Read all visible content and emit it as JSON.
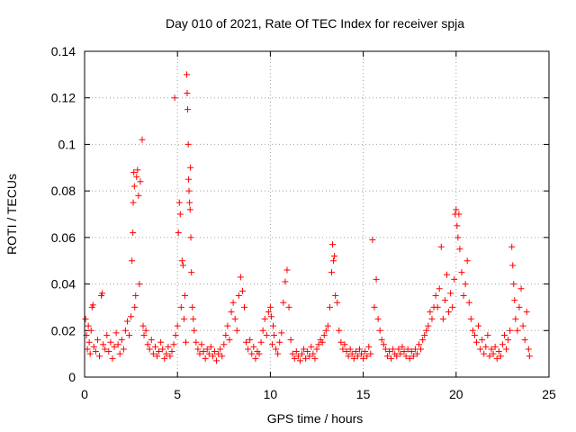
{
  "chart_data": {
    "type": "scatter",
    "title": "Day 010 of 2021, Rate Of TEC Index for receiver spja",
    "xlabel": "GPS time / hours",
    "ylabel": "ROTI / TECUs",
    "xlim": [
      0,
      25
    ],
    "ylim": [
      0,
      0.14
    ],
    "x_ticks": [
      "0",
      "5",
      "10",
      "15",
      "20",
      "25"
    ],
    "y_ticks": [
      "0",
      "0.02",
      "0.04",
      "0.06",
      "0.08",
      "0.1",
      "0.12",
      "0.14"
    ],
    "grid": true,
    "marker": "+",
    "color": "#ff0000",
    "series": [
      {
        "name": "ROTI",
        "points": [
          [
            0.05,
            0.025
          ],
          [
            0.1,
            0.018
          ],
          [
            0.15,
            0.012
          ],
          [
            0.2,
            0.022
          ],
          [
            0.25,
            0.015
          ],
          [
            0.3,
            0.01
          ],
          [
            0.35,
            0.02
          ],
          [
            0.4,
            0.03
          ],
          [
            0.45,
            0.031
          ],
          [
            0.5,
            0.013
          ],
          [
            0.6,
            0.011
          ],
          [
            0.7,
            0.016
          ],
          [
            0.8,
            0.009
          ],
          [
            0.9,
            0.035
          ],
          [
            0.95,
            0.036
          ],
          [
            1.0,
            0.014
          ],
          [
            1.1,
            0.012
          ],
          [
            1.2,
            0.018
          ],
          [
            1.3,
            0.011
          ],
          [
            1.4,
            0.015
          ],
          [
            1.5,
            0.008
          ],
          [
            1.6,
            0.013
          ],
          [
            1.7,
            0.019
          ],
          [
            1.8,
            0.014
          ],
          [
            1.9,
            0.01
          ],
          [
            2.0,
            0.016
          ],
          [
            2.1,
            0.012
          ],
          [
            2.2,
            0.02
          ],
          [
            2.3,
            0.024
          ],
          [
            2.4,
            0.018
          ],
          [
            2.5,
            0.026
          ],
          [
            2.55,
            0.05
          ],
          [
            2.6,
            0.062
          ],
          [
            2.62,
            0.075
          ],
          [
            2.65,
            0.088
          ],
          [
            2.68,
            0.082
          ],
          [
            2.7,
            0.03
          ],
          [
            2.75,
            0.035
          ],
          [
            2.8,
            0.086
          ],
          [
            2.85,
            0.089
          ],
          [
            2.9,
            0.078
          ],
          [
            2.95,
            0.04
          ],
          [
            3.0,
            0.084
          ],
          [
            3.1,
            0.102
          ],
          [
            3.15,
            0.022
          ],
          [
            3.2,
            0.018
          ],
          [
            3.3,
            0.02
          ],
          [
            3.4,
            0.014
          ],
          [
            3.5,
            0.012
          ],
          [
            3.6,
            0.016
          ],
          [
            3.7,
            0.01
          ],
          [
            3.8,
            0.013
          ],
          [
            3.9,
            0.009
          ],
          [
            4.0,
            0.011
          ],
          [
            4.1,
            0.015
          ],
          [
            4.2,
            0.012
          ],
          [
            4.3,
            0.008
          ],
          [
            4.4,
            0.01
          ],
          [
            4.5,
            0.013
          ],
          [
            4.6,
            0.009
          ],
          [
            4.7,
            0.011
          ],
          [
            4.8,
            0.014
          ],
          [
            4.85,
            0.12
          ],
          [
            4.9,
            0.018
          ],
          [
            5.0,
            0.022
          ],
          [
            5.05,
            0.062
          ],
          [
            5.1,
            0.075
          ],
          [
            5.15,
            0.07
          ],
          [
            5.2,
            0.03
          ],
          [
            5.25,
            0.05
          ],
          [
            5.3,
            0.048
          ],
          [
            5.35,
            0.025
          ],
          [
            5.4,
            0.035
          ],
          [
            5.45,
            0.015
          ],
          [
            5.5,
            0.13
          ],
          [
            5.52,
            0.122
          ],
          [
            5.55,
            0.115
          ],
          [
            5.58,
            0.1
          ],
          [
            5.6,
            0.085
          ],
          [
            5.62,
            0.08
          ],
          [
            5.65,
            0.075
          ],
          [
            5.68,
            0.072
          ],
          [
            5.7,
            0.09
          ],
          [
            5.72,
            0.06
          ],
          [
            5.75,
            0.045
          ],
          [
            5.8,
            0.03
          ],
          [
            5.85,
            0.025
          ],
          [
            5.9,
            0.02
          ],
          [
            6.0,
            0.015
          ],
          [
            6.1,
            0.012
          ],
          [
            6.2,
            0.01
          ],
          [
            6.3,
            0.014
          ],
          [
            6.4,
            0.011
          ],
          [
            6.5,
            0.008
          ],
          [
            6.6,
            0.012
          ],
          [
            6.7,
            0.01
          ],
          [
            6.8,
            0.013
          ],
          [
            6.9,
            0.009
          ],
          [
            7.0,
            0.011
          ],
          [
            7.1,
            0.007
          ],
          [
            7.2,
            0.01
          ],
          [
            7.3,
            0.012
          ],
          [
            7.4,
            0.009
          ],
          [
            7.5,
            0.014
          ],
          [
            7.6,
            0.018
          ],
          [
            7.7,
            0.022
          ],
          [
            7.8,
            0.016
          ],
          [
            7.9,
            0.028
          ],
          [
            8.0,
            0.032
          ],
          [
            8.1,
            0.025
          ],
          [
            8.2,
            0.02
          ],
          [
            8.3,
            0.035
          ],
          [
            8.4,
            0.043
          ],
          [
            8.5,
            0.037
          ],
          [
            8.6,
            0.03
          ],
          [
            8.7,
            0.015
          ],
          [
            8.8,
            0.012
          ],
          [
            8.9,
            0.016
          ],
          [
            9.0,
            0.01
          ],
          [
            9.1,
            0.013
          ],
          [
            9.2,
            0.008
          ],
          [
            9.3,
            0.011
          ],
          [
            9.4,
            0.01
          ],
          [
            9.5,
            0.015
          ],
          [
            9.6,
            0.02
          ],
          [
            9.7,
            0.025
          ],
          [
            9.8,
            0.018
          ],
          [
            9.9,
            0.028
          ],
          [
            10.0,
            0.03
          ],
          [
            10.05,
            0.026
          ],
          [
            10.1,
            0.014
          ],
          [
            10.15,
            0.022
          ],
          [
            10.2,
            0.018
          ],
          [
            10.3,
            0.012
          ],
          [
            10.4,
            0.01
          ],
          [
            10.5,
            0.015
          ],
          [
            10.6,
            0.019
          ],
          [
            10.7,
            0.032
          ],
          [
            10.8,
            0.041
          ],
          [
            10.9,
            0.046
          ],
          [
            11.0,
            0.03
          ],
          [
            11.1,
            0.016
          ],
          [
            11.2,
            0.01
          ],
          [
            11.3,
            0.008
          ],
          [
            11.4,
            0.011
          ],
          [
            11.5,
            0.009
          ],
          [
            11.6,
            0.007
          ],
          [
            11.7,
            0.01
          ],
          [
            11.8,
            0.012
          ],
          [
            11.9,
            0.008
          ],
          [
            12.0,
            0.011
          ],
          [
            12.1,
            0.009
          ],
          [
            12.2,
            0.013
          ],
          [
            12.3,
            0.01
          ],
          [
            12.4,
            0.008
          ],
          [
            12.5,
            0.012
          ],
          [
            12.6,
            0.014
          ],
          [
            12.7,
            0.016
          ],
          [
            12.8,
            0.015
          ],
          [
            12.9,
            0.018
          ],
          [
            13.0,
            0.02
          ],
          [
            13.1,
            0.022
          ],
          [
            13.2,
            0.03
          ],
          [
            13.3,
            0.045
          ],
          [
            13.35,
            0.057
          ],
          [
            13.4,
            0.05
          ],
          [
            13.45,
            0.052
          ],
          [
            13.5,
            0.035
          ],
          [
            13.6,
            0.032
          ],
          [
            13.7,
            0.02
          ],
          [
            13.8,
            0.015
          ],
          [
            13.9,
            0.012
          ],
          [
            14.0,
            0.014
          ],
          [
            14.1,
            0.011
          ],
          [
            14.2,
            0.009
          ],
          [
            14.3,
            0.012
          ],
          [
            14.4,
            0.01
          ],
          [
            14.5,
            0.008
          ],
          [
            14.6,
            0.011
          ],
          [
            14.7,
            0.009
          ],
          [
            14.8,
            0.012
          ],
          [
            14.9,
            0.01
          ],
          [
            15.0,
            0.008
          ],
          [
            15.1,
            0.011
          ],
          [
            15.2,
            0.009
          ],
          [
            15.3,
            0.013
          ],
          [
            15.4,
            0.01
          ],
          [
            15.5,
            0.059
          ],
          [
            15.6,
            0.03
          ],
          [
            15.7,
            0.042
          ],
          [
            15.8,
            0.025
          ],
          [
            15.9,
            0.02
          ],
          [
            16.0,
            0.016
          ],
          [
            16.1,
            0.014
          ],
          [
            16.2,
            0.012
          ],
          [
            16.3,
            0.009
          ],
          [
            16.4,
            0.011
          ],
          [
            16.5,
            0.008
          ],
          [
            16.6,
            0.012
          ],
          [
            16.7,
            0.01
          ],
          [
            16.8,
            0.009
          ],
          [
            16.9,
            0.012
          ],
          [
            17.0,
            0.01
          ],
          [
            17.1,
            0.013
          ],
          [
            17.2,
            0.011
          ],
          [
            17.3,
            0.009
          ],
          [
            17.4,
            0.012
          ],
          [
            17.5,
            0.008
          ],
          [
            17.6,
            0.011
          ],
          [
            17.7,
            0.009
          ],
          [
            17.8,
            0.012
          ],
          [
            17.9,
            0.01
          ],
          [
            18.0,
            0.014
          ],
          [
            18.1,
            0.012
          ],
          [
            18.2,
            0.016
          ],
          [
            18.3,
            0.018
          ],
          [
            18.4,
            0.02
          ],
          [
            18.5,
            0.022
          ],
          [
            18.6,
            0.028
          ],
          [
            18.7,
            0.025
          ],
          [
            18.8,
            0.03
          ],
          [
            18.9,
            0.035
          ],
          [
            19.0,
            0.03
          ],
          [
            19.1,
            0.038
          ],
          [
            19.2,
            0.056
          ],
          [
            19.3,
            0.025
          ],
          [
            19.4,
            0.033
          ],
          [
            19.5,
            0.044
          ],
          [
            19.6,
            0.028
          ],
          [
            19.7,
            0.036
          ],
          [
            19.8,
            0.03
          ],
          [
            19.9,
            0.042
          ],
          [
            19.95,
            0.07
          ],
          [
            20.0,
            0.072
          ],
          [
            20.05,
            0.065
          ],
          [
            20.1,
            0.06
          ],
          [
            20.15,
            0.07
          ],
          [
            20.2,
            0.055
          ],
          [
            20.3,
            0.045
          ],
          [
            20.4,
            0.035
          ],
          [
            20.5,
            0.04
          ],
          [
            20.6,
            0.05
          ],
          [
            20.7,
            0.032
          ],
          [
            20.8,
            0.025
          ],
          [
            20.9,
            0.02
          ],
          [
            21.0,
            0.018
          ],
          [
            21.1,
            0.015
          ],
          [
            21.2,
            0.022
          ],
          [
            21.3,
            0.012
          ],
          [
            21.4,
            0.016
          ],
          [
            21.5,
            0.01
          ],
          [
            21.6,
            0.013
          ],
          [
            21.7,
            0.018
          ],
          [
            21.8,
            0.009
          ],
          [
            21.9,
            0.012
          ],
          [
            22.0,
            0.01
          ],
          [
            22.1,
            0.013
          ],
          [
            22.2,
            0.008
          ],
          [
            22.3,
            0.011
          ],
          [
            22.4,
            0.009
          ],
          [
            22.5,
            0.014
          ],
          [
            22.6,
            0.018
          ],
          [
            22.7,
            0.012
          ],
          [
            22.8,
            0.016
          ],
          [
            22.9,
            0.02
          ],
          [
            23.0,
            0.056
          ],
          [
            23.05,
            0.048
          ],
          [
            23.1,
            0.04
          ],
          [
            23.15,
            0.033
          ],
          [
            23.2,
            0.025
          ],
          [
            23.3,
            0.02
          ],
          [
            23.4,
            0.03
          ],
          [
            23.5,
            0.038
          ],
          [
            23.6,
            0.022
          ],
          [
            23.7,
            0.016
          ],
          [
            23.8,
            0.028
          ],
          [
            23.9,
            0.012
          ],
          [
            23.95,
            0.009
          ]
        ]
      }
    ]
  }
}
